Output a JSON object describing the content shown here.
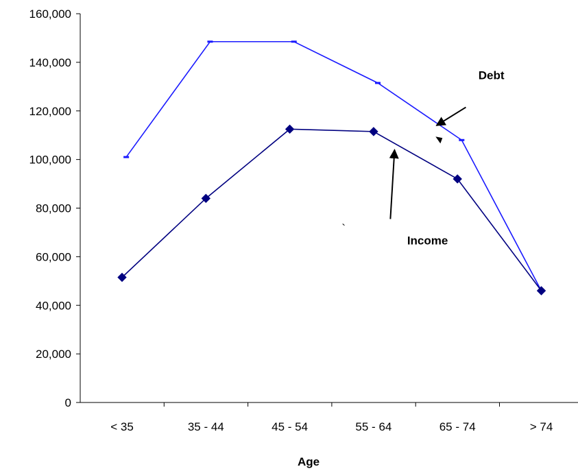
{
  "chart_data": {
    "type": "line",
    "title": "",
    "xlabel": "Age",
    "ylabel": "",
    "categories": [
      "< 35",
      "35 - 44",
      "45 - 54",
      "55 - 64",
      "65 - 74",
      "> 74"
    ],
    "ylim": [
      0,
      160000
    ],
    "yticks": [
      0,
      20000,
      40000,
      60000,
      80000,
      100000,
      120000,
      140000,
      160000
    ],
    "ytick_labels": [
      "0",
      "20,000",
      "40,000",
      "60,000",
      "80,000",
      "100,000",
      "120,000",
      "140,000",
      "160,000"
    ],
    "grid": false,
    "legend": "none",
    "series": [
      {
        "name": "Debt",
        "color": "#1a1aff",
        "marker": "dash",
        "x": [
          0.05,
          1.05,
          2.05,
          3.05,
          4.05,
          5.0
        ],
        "values": [
          101000,
          148500,
          148500,
          131500,
          108000,
          46000
        ]
      },
      {
        "name": "Income",
        "color": "#000080",
        "marker": "diamond",
        "x": [
          0,
          1,
          2,
          3,
          4,
          5
        ],
        "values": [
          51500,
          84000,
          112500,
          111500,
          92000,
          46000
        ]
      }
    ],
    "annotations": [
      {
        "text": "Debt",
        "text_at": [
          4.25,
          133000
        ],
        "arrow_from": [
          4.1,
          121500
        ],
        "arrow_to": [
          3.75,
          114000
        ]
      },
      {
        "text": "Income",
        "text_at": [
          3.4,
          65000
        ],
        "arrow_from": [
          3.2,
          75500
        ],
        "arrow_to": [
          3.25,
          104000
        ]
      }
    ],
    "stray_marks": [
      {
        "text": "`",
        "at": [
          2.62,
          70000
        ]
      }
    ],
    "stray_arrowheads": [
      {
        "at": [
          3.78,
          108000
        ]
      }
    ]
  }
}
